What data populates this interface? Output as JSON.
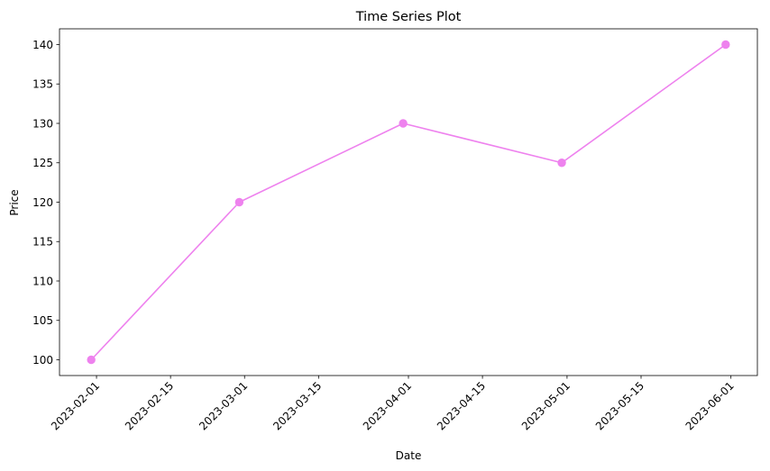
{
  "chart_data": {
    "type": "line",
    "title": "Time Series Plot",
    "xlabel": "Date",
    "ylabel": "Price",
    "x_type": "date",
    "xlim": [
      "2023-01-25",
      "2023-06-06"
    ],
    "ylim": [
      98,
      142
    ],
    "x_ticks": [
      "2023-02-01",
      "2023-02-15",
      "2023-03-01",
      "2023-03-15",
      "2023-04-01",
      "2023-04-15",
      "2023-05-01",
      "2023-05-15",
      "2023-06-01"
    ],
    "y_ticks": [
      100,
      105,
      110,
      115,
      120,
      125,
      130,
      135,
      140
    ],
    "x_tick_rotation": 45,
    "grid": false,
    "legend": false,
    "series": [
      {
        "x": [
          "2023-01-31",
          "2023-02-28",
          "2023-03-31",
          "2023-04-30",
          "2023-05-31"
        ],
        "values": [
          100,
          120,
          130,
          125,
          140
        ],
        "color": "#ee82ee",
        "marker": "circle"
      }
    ]
  }
}
